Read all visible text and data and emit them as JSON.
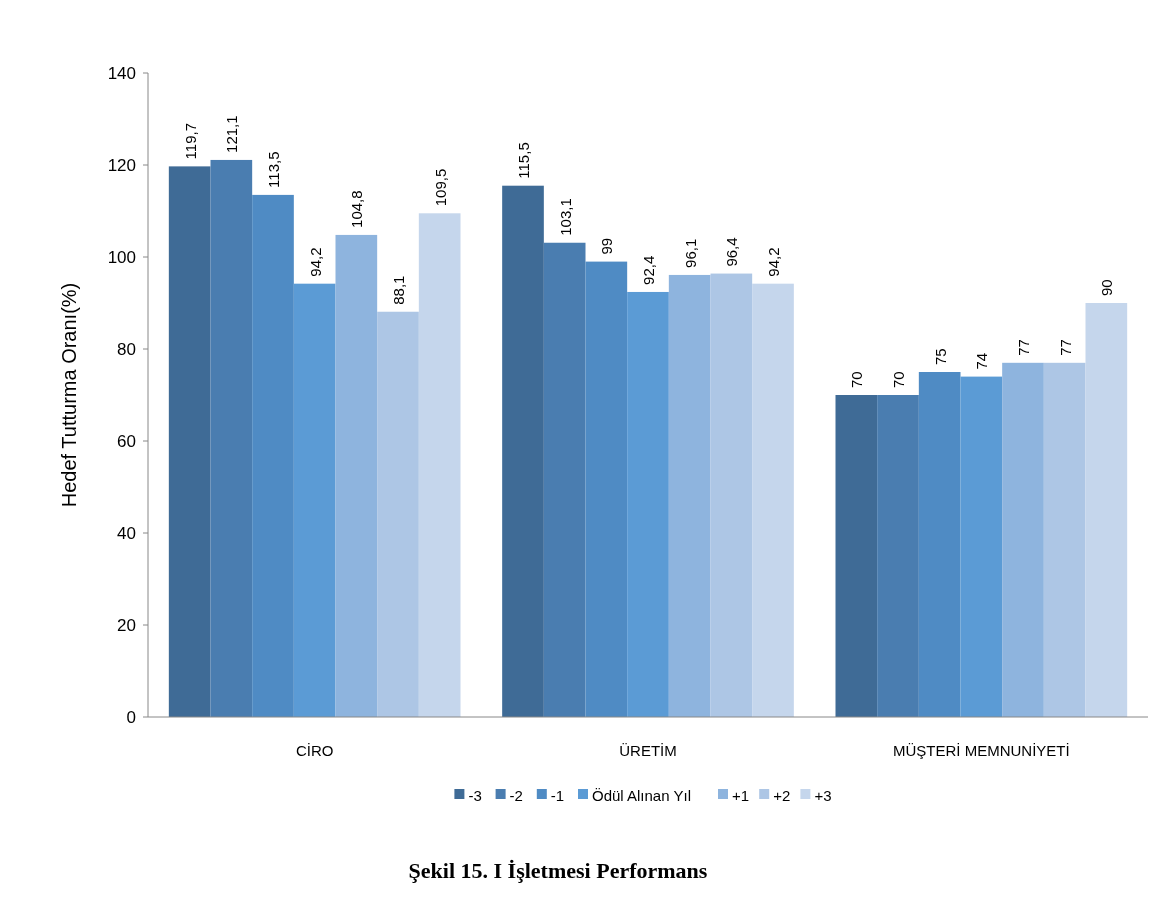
{
  "chart_data": {
    "type": "bar",
    "title": "Şekil 15. I İşletmesi Performans",
    "ylabel": "Hedef Tutturma Oranı(%)",
    "categories": [
      "CİRO",
      "ÜRETİM",
      "MÜŞTERİ MEMNUNİYETİ"
    ],
    "series": [
      {
        "name": "-3",
        "color": "#3f6b96",
        "values": [
          119.7,
          115.5,
          70
        ],
        "value_labels": [
          "119,7",
          "115,5",
          "70"
        ]
      },
      {
        "name": "-2",
        "color": "#4a7db0",
        "values": [
          121.1,
          103.1,
          70
        ],
        "value_labels": [
          "121,1",
          "103,1",
          "70"
        ]
      },
      {
        "name": "-1",
        "color": "#4f8bc4",
        "values": [
          113.5,
          99,
          75
        ],
        "value_labels": [
          "113,5",
          "99",
          "75"
        ]
      },
      {
        "name": "Ödül Alınan Yıl",
        "color": "#5b9bd5",
        "values": [
          94.2,
          92.4,
          74
        ],
        "value_labels": [
          "94,2",
          "92,4",
          "74"
        ]
      },
      {
        "name": "+1",
        "color": "#8eb4de",
        "values": [
          104.8,
          96.1,
          77
        ],
        "value_labels": [
          "104,8",
          "96,1",
          "77"
        ]
      },
      {
        "name": "+2",
        "color": "#adc6e5",
        "values": [
          88.1,
          96.4,
          77
        ],
        "value_labels": [
          "88,1",
          "96,4",
          "77"
        ]
      },
      {
        "name": "+3",
        "color": "#c5d6ec",
        "values": [
          109.5,
          94.2,
          90
        ],
        "value_labels": [
          "109,5",
          "94,2",
          "90"
        ]
      }
    ],
    "ylim": [
      0,
      140
    ],
    "yticks": [
      0,
      20,
      40,
      60,
      80,
      100,
      120,
      140
    ],
    "legend": "bottom"
  }
}
